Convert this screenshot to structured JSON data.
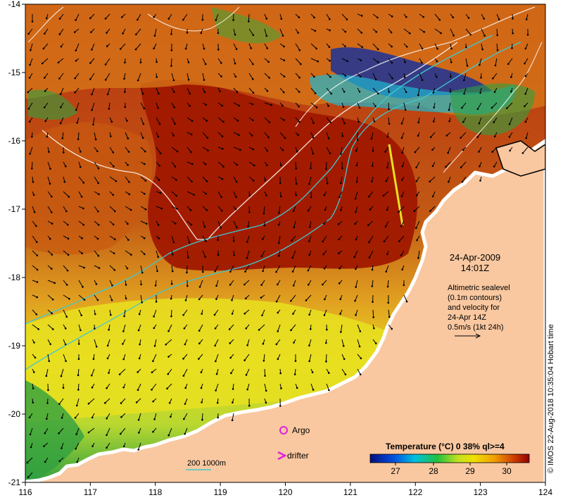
{
  "map": {
    "x_ticks": [
      "116",
      "117",
      "118",
      "119",
      "120",
      "121",
      "122",
      "123",
      "124"
    ],
    "y_ticks": [
      "-14",
      "-15",
      "-16",
      "-17",
      "-18",
      "-19",
      "-20",
      "-21"
    ],
    "date": "24-Apr-2009",
    "time": "14:01Z",
    "info_lines": [
      "Altimetric sealevel",
      "(0.1m contours)",
      "and velocity for",
      "24-Apr 14Z",
      "0.5m/s (1kt 24h)"
    ],
    "legend": {
      "argo_label": "Argo",
      "drifter_label": "drifter",
      "depth_label": "200  1000m"
    },
    "colorbar": {
      "title": "Temperature (°C) 0 38% ql>=4",
      "ticks": [
        "27",
        "28",
        "29",
        "30"
      ]
    },
    "credit": "© IMOS 22-Aug-2018 10:35:04 Hobart time",
    "colors": {
      "land": "#f9c8a0",
      "sst_hot": "#a01800",
      "sst_warm": "#c85a10",
      "sst_mid": "#e8a020",
      "sst_yellow": "#e8e020",
      "sst_green": "#2fa040",
      "sst_cold": "#1030a0",
      "contour_cyan": "#40c8d0",
      "marker_magenta": "#e020e0"
    }
  }
}
